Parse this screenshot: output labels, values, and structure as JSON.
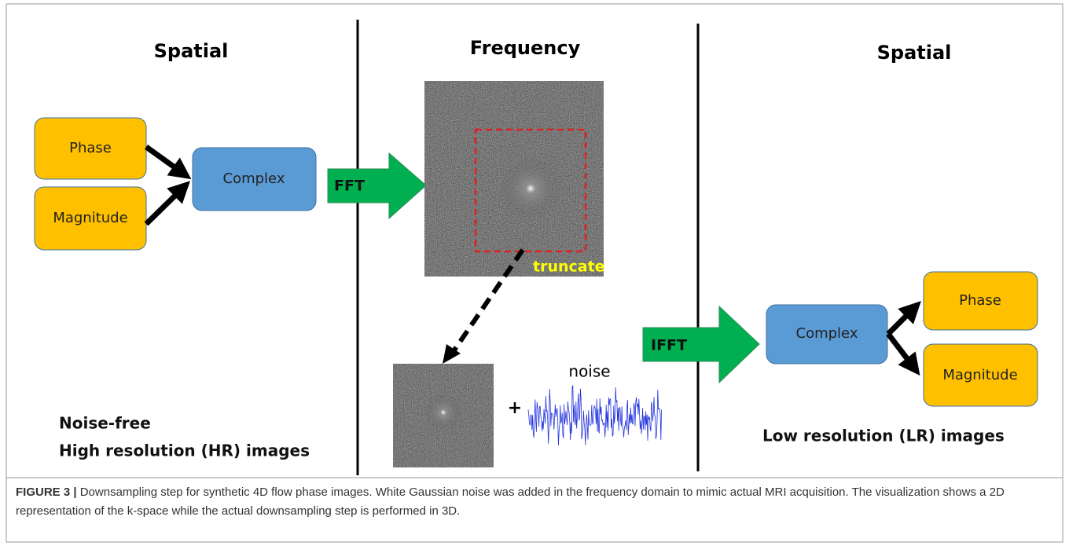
{
  "columns": {
    "left": "Spatial",
    "middle": "Frequency",
    "right": "Spatial"
  },
  "left": {
    "phase": "Phase",
    "magnitude": "Magnitude",
    "complex": "Complex",
    "arrow": "FFT",
    "note": [
      "Noise-free",
      "High resolution (HR) images"
    ]
  },
  "middle": {
    "truncate": "truncate",
    "plus": "+",
    "noise": "noise"
  },
  "right": {
    "arrow": "IFFT",
    "complex": "Complex",
    "phase": "Phase",
    "magnitude": "Magnitude",
    "note": "Low resolution (LR) images"
  },
  "caption": {
    "label": "FIGURE 3 |",
    "text": "Downsampling step for synthetic 4D flow phase images. White Gaussian noise was added in the frequency domain to mimic actual MRI acquisition. The visualization shows a 2D representation of the k-space while the actual downsampling step is performed in 3D."
  }
}
